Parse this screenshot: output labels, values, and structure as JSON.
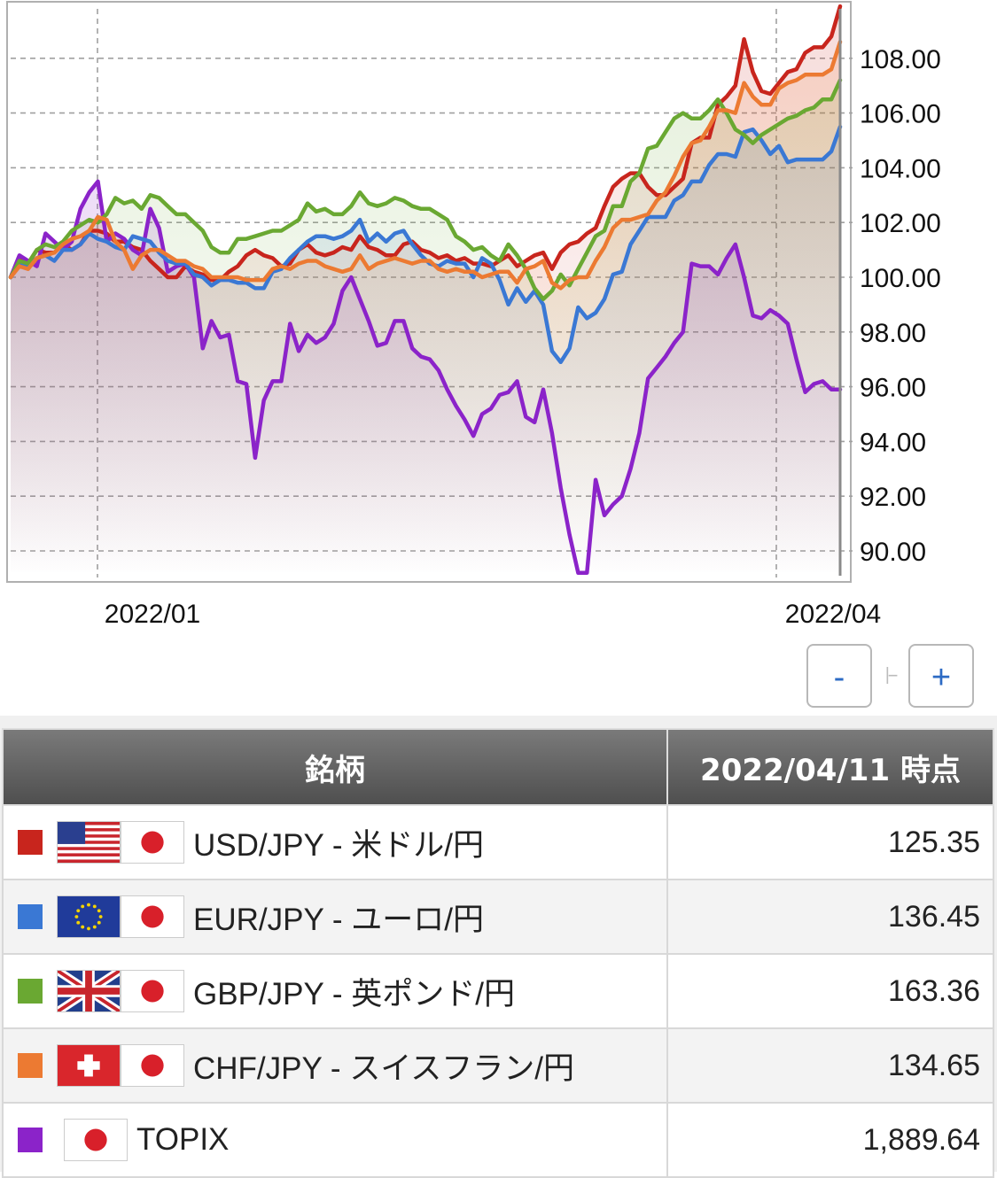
{
  "chart_data": {
    "type": "line",
    "x_labels": [
      "2022/01",
      "2022/04"
    ],
    "y_ticks": [
      90.0,
      92.0,
      94.0,
      96.0,
      98.0,
      100.0,
      102.0,
      104.0,
      106.0,
      108.0
    ],
    "ylim": [
      88.9,
      109.9
    ],
    "y_tick_labels": [
      "90.00",
      "92.00",
      "94.00",
      "96.00",
      "98.00",
      "100.00",
      "102.00",
      "104.00",
      "106.00",
      "108.00"
    ],
    "grid": true,
    "series": [
      {
        "key": "usd",
        "color": "#c8251d",
        "values": [
          100.0,
          100.7,
          100.5,
          101.0,
          100.9,
          100.9,
          101.2,
          101.0,
          101.2,
          101.7,
          101.7,
          101.6,
          101.3,
          101.3,
          101.1,
          101.0,
          100.6,
          100.3,
          100.0,
          100.0,
          100.4,
          100.2,
          100.1,
          99.9,
          99.9,
          100.2,
          100.4,
          100.8,
          101.0,
          100.8,
          100.7,
          100.4,
          100.5,
          101.0,
          101.2,
          100.9,
          100.8,
          100.9,
          101.1,
          101.0,
          101.5,
          101.1,
          101.0,
          100.8,
          100.8,
          101.2,
          101.3,
          101.0,
          100.9,
          100.7,
          100.8,
          100.6,
          100.7,
          100.5,
          100.5,
          100.4,
          100.6,
          100.8,
          100.4,
          100.6,
          100.8,
          100.9,
          100.3,
          100.9,
          101.2,
          101.3,
          101.6,
          101.8,
          102.6,
          103.3,
          103.6,
          103.8,
          103.8,
          103.3,
          103.0,
          103.0,
          103.3,
          103.6,
          104.9,
          105.1,
          105.1,
          106.3,
          106.6,
          107.0,
          108.7,
          107.5,
          106.8,
          106.7,
          107.1,
          107.5,
          107.6,
          108.2,
          108.4,
          108.4,
          108.8,
          109.9
        ]
      },
      {
        "key": "eur",
        "color": "#3a78d4",
        "values": [
          100.0,
          100.5,
          100.4,
          100.7,
          100.8,
          100.6,
          101.0,
          101.0,
          101.2,
          101.6,
          101.4,
          101.3,
          101.1,
          101.0,
          101.5,
          101.4,
          101.3,
          100.9,
          100.6,
          100.5,
          100.5,
          100.1,
          100.0,
          99.7,
          99.9,
          99.9,
          99.8,
          99.8,
          99.6,
          99.6,
          100.2,
          100.3,
          100.7,
          101.0,
          101.3,
          101.5,
          101.5,
          101.4,
          101.5,
          101.7,
          102.1,
          101.3,
          101.6,
          101.3,
          101.6,
          101.7,
          101.2,
          100.8,
          100.5,
          100.4,
          100.6,
          100.5,
          100.5,
          100.0,
          100.7,
          100.5,
          99.9,
          99.0,
          99.6,
          99.1,
          99.5,
          99.0,
          97.3,
          96.9,
          97.4,
          98.9,
          98.5,
          98.7,
          99.2,
          100.1,
          100.2,
          101.2,
          101.7,
          102.2,
          102.2,
          102.2,
          102.8,
          103.0,
          103.5,
          103.5,
          104.1,
          104.5,
          104.5,
          104.4,
          105.3,
          105.4,
          105.0,
          104.5,
          104.8,
          104.2,
          104.3,
          104.3,
          104.3,
          104.3,
          104.6,
          105.5
        ]
      },
      {
        "key": "gbp",
        "color": "#6aa832",
        "values": [
          100.0,
          100.6,
          100.5,
          101.0,
          101.2,
          101.1,
          101.3,
          101.7,
          101.9,
          102.1,
          102.0,
          102.3,
          102.9,
          102.7,
          102.8,
          102.5,
          103.0,
          102.9,
          102.6,
          102.3,
          102.3,
          102.0,
          101.7,
          101.1,
          100.9,
          100.9,
          101.4,
          101.4,
          101.5,
          101.6,
          101.7,
          101.7,
          101.9,
          102.1,
          102.7,
          102.4,
          102.5,
          102.3,
          102.3,
          102.6,
          103.1,
          102.7,
          102.6,
          102.7,
          102.9,
          102.8,
          102.6,
          102.5,
          102.5,
          102.3,
          102.1,
          101.5,
          101.3,
          101.0,
          101.1,
          100.8,
          100.6,
          101.2,
          100.8,
          100.3,
          99.6,
          99.2,
          99.5,
          100.1,
          99.7,
          100.3,
          100.9,
          101.5,
          101.7,
          102.6,
          102.6,
          103.5,
          103.8,
          104.7,
          104.8,
          105.3,
          105.8,
          106.0,
          105.8,
          105.8,
          106.1,
          106.5,
          106.0,
          105.4,
          105.2,
          104.9,
          105.2,
          105.4,
          105.6,
          105.8,
          105.9,
          106.1,
          106.2,
          106.5,
          106.5,
          107.2
        ]
      },
      {
        "key": "chf",
        "color": "#ec7a32",
        "values": [
          100.0,
          100.4,
          100.3,
          100.7,
          100.8,
          100.9,
          101.2,
          101.4,
          101.5,
          101.7,
          102.2,
          102.1,
          101.3,
          101.0,
          100.3,
          100.8,
          101.0,
          101.0,
          100.8,
          100.6,
          100.6,
          100.4,
          100.3,
          100.0,
          100.0,
          100.0,
          100.0,
          99.9,
          99.9,
          99.9,
          100.3,
          100.4,
          100.3,
          100.5,
          100.6,
          100.6,
          100.4,
          100.3,
          100.2,
          100.3,
          100.8,
          100.3,
          100.5,
          100.6,
          100.7,
          100.6,
          100.5,
          100.6,
          100.6,
          100.3,
          100.2,
          100.3,
          100.2,
          100.2,
          100.0,
          100.1,
          100.2,
          100.2,
          99.8,
          100.3,
          100.4,
          100.6,
          99.8,
          99.6,
          99.9,
          100.0,
          100.0,
          100.6,
          101.1,
          101.8,
          102.1,
          102.1,
          102.2,
          102.3,
          102.8,
          103.1,
          103.7,
          104.4,
          104.9,
          105.0,
          105.5,
          106.1,
          106.1,
          106.0,
          107.1,
          106.6,
          106.3,
          106.3,
          106.9,
          107.1,
          107.2,
          107.4,
          107.4,
          107.4,
          107.6,
          108.6
        ]
      },
      {
        "key": "topix",
        "color": "#8b23c9",
        "values": [
          100.0,
          100.8,
          100.6,
          100.4,
          101.6,
          101.3,
          101.0,
          101.3,
          102.5,
          103.1,
          103.5,
          101.3,
          101.6,
          101.4,
          101.0,
          100.8,
          102.5,
          101.8,
          100.2,
          100.4,
          100.5,
          100.0,
          97.4,
          98.4,
          97.8,
          97.9,
          96.2,
          96.1,
          93.4,
          95.5,
          96.2,
          96.2,
          98.3,
          97.3,
          97.9,
          97.6,
          97.8,
          98.3,
          99.5,
          100.0,
          99.2,
          98.4,
          97.5,
          97.6,
          98.4,
          98.4,
          97.4,
          97.1,
          97.0,
          96.6,
          95.9,
          95.3,
          94.8,
          94.2,
          95.0,
          95.2,
          95.7,
          95.8,
          96.2,
          94.9,
          94.7,
          95.9,
          94.3,
          92.3,
          90.6,
          89.2,
          89.2,
          92.6,
          91.3,
          91.7,
          92.0,
          93.0,
          94.3,
          96.3,
          96.7,
          97.1,
          97.6,
          98.0,
          100.5,
          100.4,
          100.4,
          100.1,
          100.7,
          101.2,
          100.0,
          98.6,
          98.5,
          98.8,
          98.6,
          98.3,
          97.0,
          95.8,
          96.1,
          96.2,
          95.9,
          95.9
        ]
      }
    ]
  },
  "zoom": {
    "minus_label": "-",
    "plus_label": "+",
    "track": "|--"
  },
  "table": {
    "col_name_header": "銘柄",
    "col_value_header": "2022/04/11 時点",
    "rows": [
      {
        "color": "#c8251d",
        "flag": "us",
        "label": "USD/JPY - 米ドル/円",
        "value": "125.35"
      },
      {
        "color": "#3a78d4",
        "flag": "eu",
        "label": "EUR/JPY - ユーロ/円",
        "value": "136.45"
      },
      {
        "color": "#6aa832",
        "flag": "gb",
        "label": "GBP/JPY - 英ポンド/円",
        "value": "163.36"
      },
      {
        "color": "#ec7a32",
        "flag": "ch",
        "label": "CHF/JPY - スイスフラン/円",
        "value": "134.65"
      },
      {
        "color": "#8b23c9",
        "flag": "none",
        "label": "TOPIX",
        "value": "1,889.64"
      }
    ]
  }
}
